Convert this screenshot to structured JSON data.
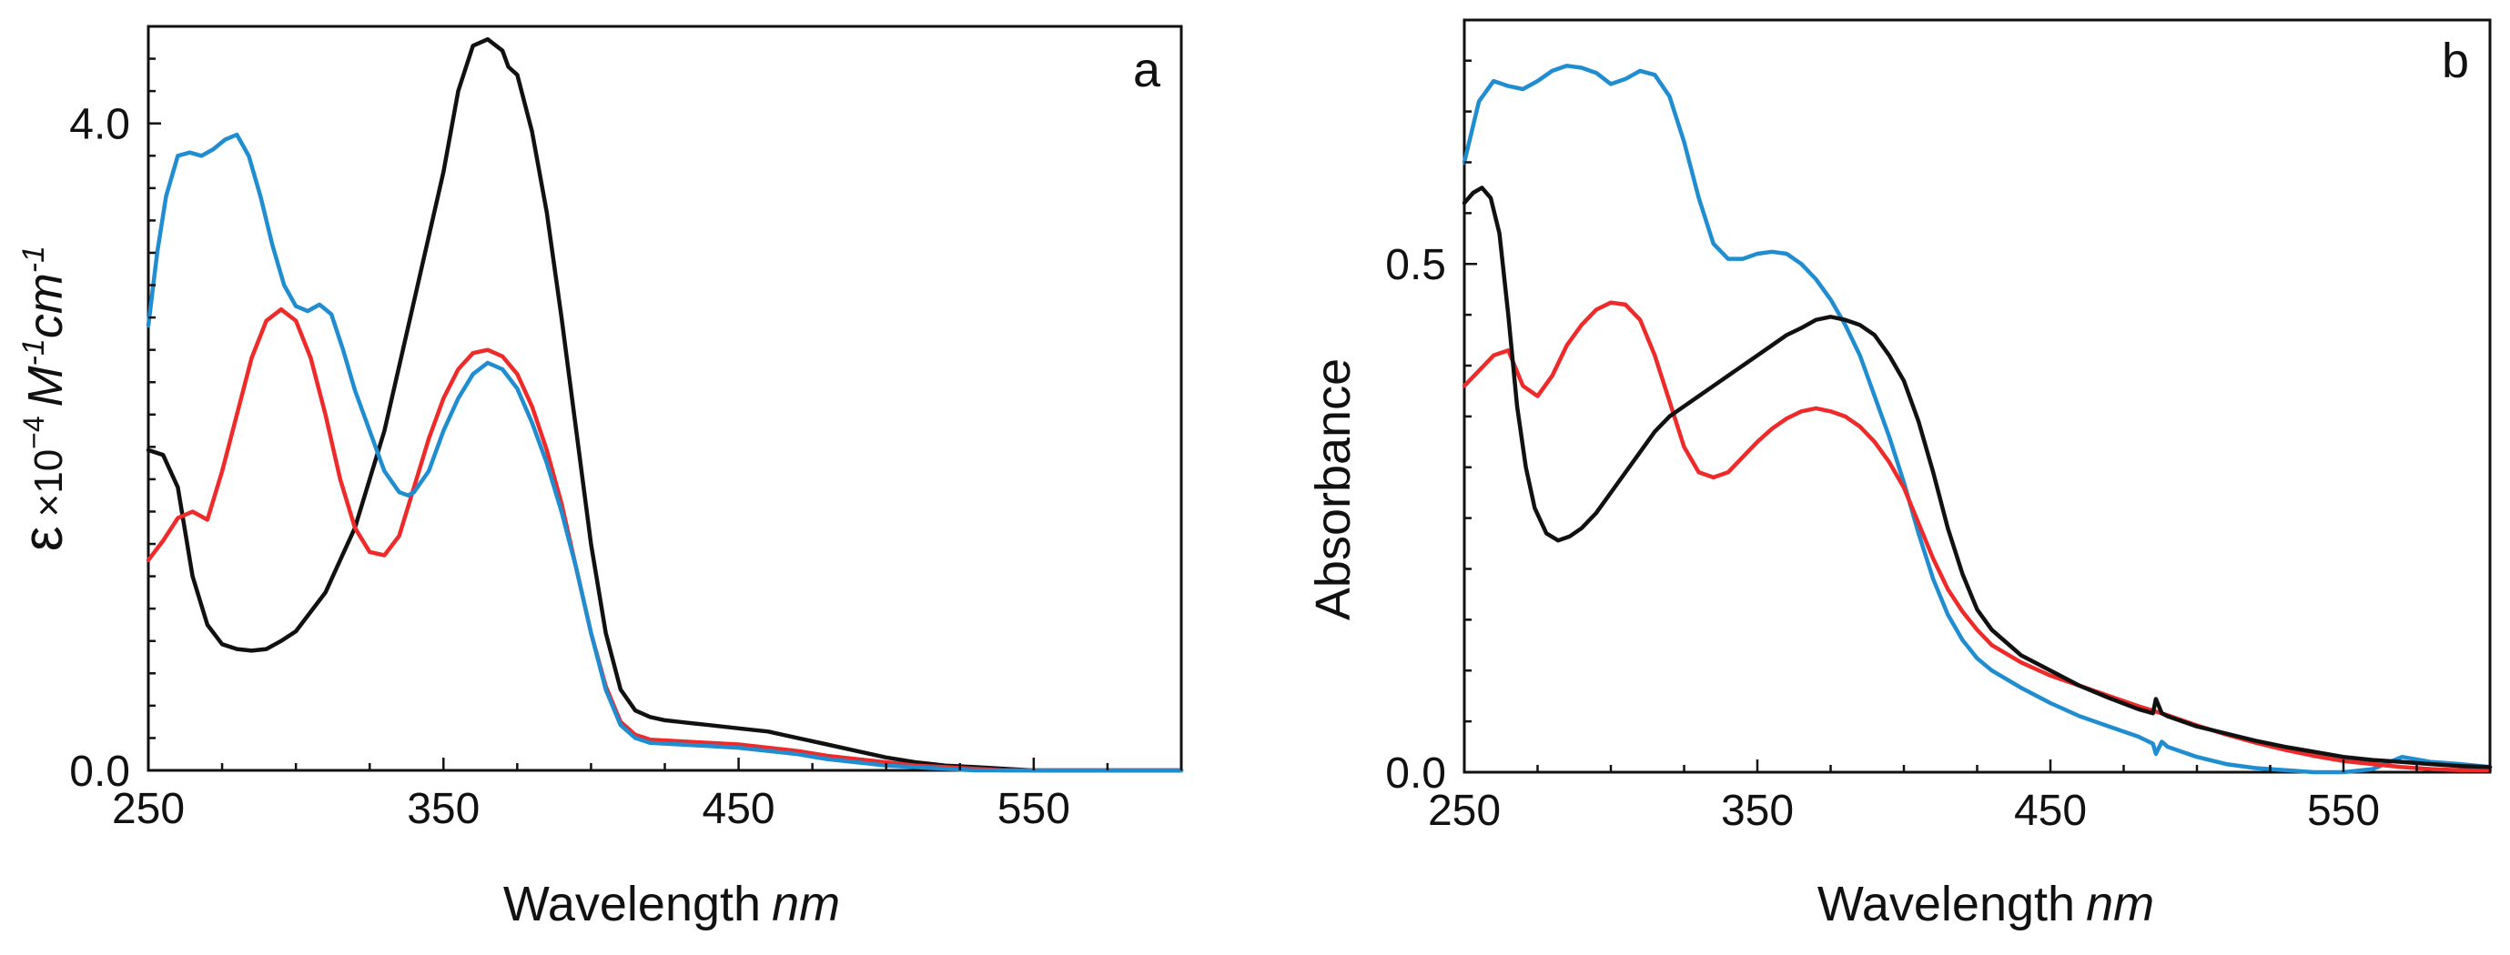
{
  "chart_data": [
    {
      "type": "line",
      "panel_label": "a",
      "xlabel": "Wavelength",
      "xlabel_unit": "nm",
      "ylabel_symbol": "ε",
      "ylabel_rest": "×10",
      "ylabel_exp": "−4",
      "ylabel_M": "M",
      "ylabel_M_exp": "-1",
      "ylabel_cm": "cm",
      "ylabel_cm_exp": "-1",
      "xlim": [
        250,
        600
      ],
      "ylim": [
        0,
        4.6
      ],
      "xticks": [
        250,
        350,
        450,
        550
      ],
      "xtick_labels": [
        "250",
        "350",
        "450",
        "550"
      ],
      "yticks": [
        0,
        4
      ],
      "ytick_labels": [
        "0.0",
        "4.0"
      ],
      "series": [
        {
          "name": "black",
          "color": "#111111",
          "x": [
            250,
            255,
            260,
            265,
            270,
            275,
            280,
            285,
            290,
            295,
            300,
            310,
            320,
            330,
            340,
            350,
            355,
            360,
            365,
            370,
            372,
            375,
            380,
            385,
            390,
            395,
            400,
            405,
            410,
            415,
            420,
            425,
            430,
            440,
            450,
            460,
            470,
            480,
            490,
            500,
            510,
            520,
            530,
            540,
            550,
            560,
            580,
            600
          ],
          "y": [
            1.98,
            1.95,
            1.75,
            1.2,
            0.9,
            0.78,
            0.75,
            0.74,
            0.75,
            0.8,
            0.86,
            1.1,
            1.5,
            2.1,
            2.9,
            3.7,
            4.2,
            4.48,
            4.52,
            4.45,
            4.35,
            4.3,
            3.95,
            3.45,
            2.8,
            2.1,
            1.4,
            0.85,
            0.5,
            0.37,
            0.33,
            0.31,
            0.3,
            0.28,
            0.26,
            0.24,
            0.2,
            0.16,
            0.12,
            0.08,
            0.05,
            0.03,
            0.02,
            0.01,
            0.0,
            0.0,
            0.0,
            0.0
          ]
        },
        {
          "name": "red",
          "color": "#ee2a2a",
          "x": [
            250,
            255,
            260,
            265,
            270,
            275,
            280,
            285,
            290,
            295,
            300,
            305,
            310,
            315,
            320,
            325,
            330,
            335,
            340,
            345,
            350,
            355,
            360,
            365,
            370,
            375,
            380,
            385,
            390,
            395,
            400,
            405,
            410,
            415,
            420,
            430,
            440,
            450,
            460,
            470,
            480,
            490,
            500,
            510,
            520,
            530,
            540,
            550,
            560,
            580,
            600
          ],
          "y": [
            1.3,
            1.42,
            1.56,
            1.6,
            1.55,
            1.85,
            2.2,
            2.55,
            2.78,
            2.85,
            2.78,
            2.55,
            2.2,
            1.8,
            1.5,
            1.35,
            1.33,
            1.45,
            1.75,
            2.05,
            2.3,
            2.48,
            2.58,
            2.6,
            2.56,
            2.45,
            2.25,
            1.98,
            1.65,
            1.25,
            0.85,
            0.52,
            0.3,
            0.22,
            0.19,
            0.18,
            0.17,
            0.16,
            0.14,
            0.12,
            0.09,
            0.07,
            0.05,
            0.03,
            0.02,
            0.01,
            0.0,
            0.0,
            0.0,
            0.0,
            0.0
          ]
        },
        {
          "name": "blue",
          "color": "#1f8dcf",
          "x": [
            250,
            253,
            256,
            260,
            264,
            268,
            272,
            276,
            280,
            284,
            288,
            292,
            296,
            300,
            304,
            308,
            312,
            316,
            320,
            325,
            330,
            335,
            338,
            340,
            345,
            350,
            355,
            360,
            365,
            370,
            375,
            380,
            385,
            390,
            395,
            400,
            405,
            410,
            415,
            420,
            430,
            440,
            450,
            460,
            470,
            480,
            490,
            500,
            510,
            520,
            530,
            540,
            550,
            560,
            580,
            600
          ],
          "y": [
            2.75,
            3.2,
            3.55,
            3.8,
            3.82,
            3.8,
            3.84,
            3.9,
            3.93,
            3.8,
            3.55,
            3.25,
            3.0,
            2.87,
            2.84,
            2.88,
            2.82,
            2.6,
            2.35,
            2.1,
            1.85,
            1.72,
            1.7,
            1.72,
            1.85,
            2.1,
            2.3,
            2.45,
            2.52,
            2.48,
            2.36,
            2.15,
            1.9,
            1.6,
            1.25,
            0.85,
            0.5,
            0.28,
            0.2,
            0.17,
            0.16,
            0.15,
            0.14,
            0.12,
            0.1,
            0.07,
            0.05,
            0.03,
            0.02,
            0.01,
            0.0,
            0.0,
            0.0,
            0.0,
            0.0,
            0.0
          ]
        }
      ]
    },
    {
      "type": "line",
      "panel_label": "b",
      "xlabel": "Wavelength",
      "xlabel_unit": "nm",
      "ylabel": "Absorbance",
      "xlim": [
        250,
        600
      ],
      "ylim": [
        0,
        0.74
      ],
      "xticks": [
        250,
        350,
        450,
        550
      ],
      "xtick_labels": [
        "250",
        "350",
        "450",
        "550"
      ],
      "yticks": [
        0,
        0.5
      ],
      "ytick_labels": [
        "0.0",
        "0.5"
      ],
      "series": [
        {
          "name": "blue",
          "color": "#1f8dcf",
          "x": [
            250,
            255,
            260,
            265,
            270,
            275,
            280,
            285,
            290,
            295,
            300,
            305,
            310,
            315,
            320,
            325,
            330,
            335,
            340,
            345,
            350,
            355,
            360,
            365,
            370,
            375,
            380,
            385,
            390,
            395,
            400,
            405,
            410,
            415,
            420,
            425,
            430,
            440,
            450,
            460,
            470,
            480,
            485,
            486,
            488,
            490,
            500,
            510,
            520,
            530,
            540,
            550,
            560,
            570,
            580,
            590,
            600
          ],
          "y": [
            0.6,
            0.66,
            0.68,
            0.675,
            0.672,
            0.68,
            0.69,
            0.695,
            0.693,
            0.688,
            0.677,
            0.682,
            0.69,
            0.686,
            0.665,
            0.62,
            0.565,
            0.52,
            0.505,
            0.505,
            0.51,
            0.512,
            0.51,
            0.5,
            0.485,
            0.465,
            0.44,
            0.41,
            0.37,
            0.33,
            0.285,
            0.235,
            0.19,
            0.155,
            0.13,
            0.112,
            0.1,
            0.083,
            0.068,
            0.055,
            0.045,
            0.035,
            0.028,
            0.018,
            0.03,
            0.025,
            0.015,
            0.008,
            0.004,
            0.002,
            0.0,
            0.0,
            0.003,
            0.015,
            0.01,
            0.008,
            0.005
          ]
        },
        {
          "name": "red",
          "color": "#ee2a2a",
          "x": [
            250,
            255,
            260,
            265,
            270,
            275,
            280,
            285,
            290,
            295,
            300,
            305,
            310,
            315,
            320,
            325,
            330,
            335,
            340,
            345,
            350,
            355,
            360,
            365,
            370,
            375,
            380,
            385,
            390,
            395,
            400,
            405,
            410,
            415,
            420,
            425,
            430,
            440,
            450,
            460,
            470,
            480,
            490,
            500,
            510,
            520,
            530,
            540,
            550,
            560,
            570,
            580,
            590,
            600
          ],
          "y": [
            0.38,
            0.395,
            0.41,
            0.415,
            0.38,
            0.37,
            0.39,
            0.42,
            0.44,
            0.455,
            0.462,
            0.46,
            0.445,
            0.41,
            0.365,
            0.32,
            0.295,
            0.29,
            0.295,
            0.31,
            0.325,
            0.338,
            0.348,
            0.355,
            0.358,
            0.355,
            0.35,
            0.34,
            0.325,
            0.305,
            0.28,
            0.245,
            0.21,
            0.18,
            0.158,
            0.14,
            0.125,
            0.108,
            0.095,
            0.085,
            0.075,
            0.065,
            0.056,
            0.046,
            0.037,
            0.029,
            0.022,
            0.016,
            0.011,
            0.008,
            0.005,
            0.003,
            0.002,
            0.002
          ]
        },
        {
          "name": "black",
          "color": "#111111",
          "x": [
            250,
            253,
            256,
            259,
            262,
            265,
            268,
            271,
            274,
            278,
            282,
            286,
            290,
            295,
            300,
            305,
            310,
            315,
            320,
            325,
            330,
            335,
            340,
            345,
            350,
            355,
            360,
            365,
            370,
            375,
            380,
            385,
            390,
            395,
            400,
            405,
            410,
            415,
            420,
            425,
            430,
            440,
            450,
            460,
            470,
            480,
            485,
            486,
            488,
            490,
            500,
            510,
            520,
            530,
            540,
            550,
            560,
            570,
            580,
            590,
            600
          ],
          "y": [
            0.56,
            0.57,
            0.575,
            0.565,
            0.53,
            0.45,
            0.36,
            0.3,
            0.26,
            0.235,
            0.228,
            0.232,
            0.24,
            0.255,
            0.275,
            0.295,
            0.315,
            0.335,
            0.35,
            0.36,
            0.37,
            0.38,
            0.39,
            0.4,
            0.41,
            0.42,
            0.43,
            0.437,
            0.445,
            0.448,
            0.445,
            0.44,
            0.43,
            0.41,
            0.385,
            0.345,
            0.295,
            0.24,
            0.195,
            0.16,
            0.14,
            0.115,
            0.1,
            0.085,
            0.073,
            0.062,
            0.058,
            0.072,
            0.058,
            0.055,
            0.045,
            0.038,
            0.031,
            0.025,
            0.02,
            0.015,
            0.012,
            0.01,
            0.008,
            0.006,
            0.005
          ]
        }
      ]
    }
  ]
}
